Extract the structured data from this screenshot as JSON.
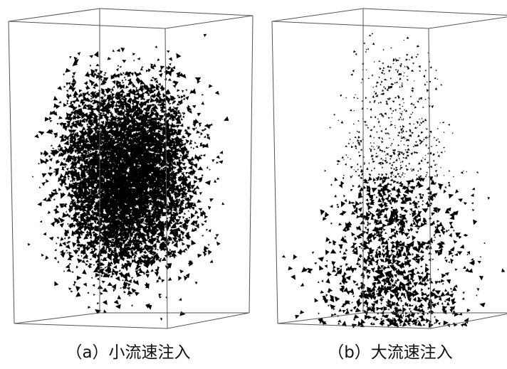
{
  "panels": [
    {
      "caption": "（a）小流速注入"
    },
    {
      "caption": "（b）大流速注入"
    }
  ]
}
